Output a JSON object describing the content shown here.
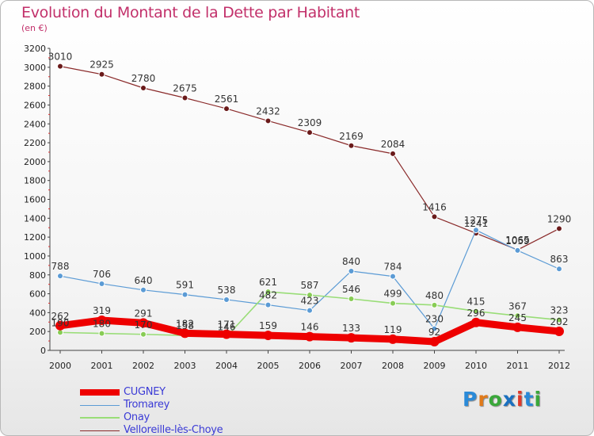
{
  "title": "Evolution du Montant de la Dette par Habitant",
  "subtitle": "(en €)",
  "logo": {
    "text": "Proxiti",
    "letter_colors": [
      "#2a8ad8",
      "#e07a1a",
      "#3aa83a",
      "#1a70c0",
      "#e03a2a",
      "#2a8ad8",
      "#3aa83a"
    ]
  },
  "chart_data": {
    "type": "line",
    "x": [
      "2000",
      "2001",
      "2002",
      "2003",
      "2004",
      "2005",
      "2006",
      "2007",
      "2008",
      "2009",
      "2010",
      "2011",
      "2012"
    ],
    "ylim": [
      0,
      3200
    ],
    "yticks": [
      0,
      200,
      400,
      600,
      800,
      1000,
      1200,
      1400,
      1600,
      1800,
      2000,
      2200,
      2400,
      2600,
      2800,
      3000,
      3200
    ],
    "grid": false,
    "legend_position": "bottom-left",
    "series": [
      {
        "name": "CUGNEY",
        "color": "#ee0000",
        "fill": "#ee0000",
        "values": [
          262,
          319,
          291,
          182,
          171,
          159,
          146,
          133,
          119,
          92,
          296,
          245,
          202
        ],
        "labels": [
          "262",
          "319",
          "291",
          "182",
          "171",
          "159",
          "146",
          "133",
          "119",
          "92",
          "296",
          "245",
          "202"
        ]
      },
      {
        "name": "Tromarey",
        "color": "#5b9bd5",
        "fill": "#5b9bd5",
        "values": [
          788,
          706,
          640,
          591,
          538,
          482,
          423,
          840,
          784,
          230,
          1275,
          1059,
          863
        ],
        "labels": [
          "788",
          "706",
          "640",
          "591",
          "538",
          "482",
          "423",
          "840",
          "784",
          "230",
          "1275",
          "1059",
          "863"
        ]
      },
      {
        "name": "Onay",
        "color": "#99dd77",
        "fill": "#88cc55",
        "values": [
          190,
          180,
          170,
          158,
          146,
          621,
          587,
          546,
          499,
          480,
          415,
          367,
          323
        ],
        "labels": [
          "190",
          "180",
          "170",
          "158",
          "146",
          "621",
          "587",
          "546",
          "499",
          "480",
          "415",
          "367",
          "323"
        ]
      },
      {
        "name": "Velloreille-lès-Choye",
        "color": "#8a2a2a",
        "fill": "#6a1a1a",
        "values": [
          3010,
          2925,
          2780,
          2675,
          2561,
          2432,
          2309,
          2169,
          2084,
          1416,
          1241,
          1065,
          1290
        ],
        "labels": [
          "3010",
          "2925",
          "2780",
          "2675",
          "2561",
          "2432",
          "2309",
          "2169",
          "2084",
          "1416",
          "1241",
          "1065",
          "1290"
        ]
      }
    ]
  }
}
